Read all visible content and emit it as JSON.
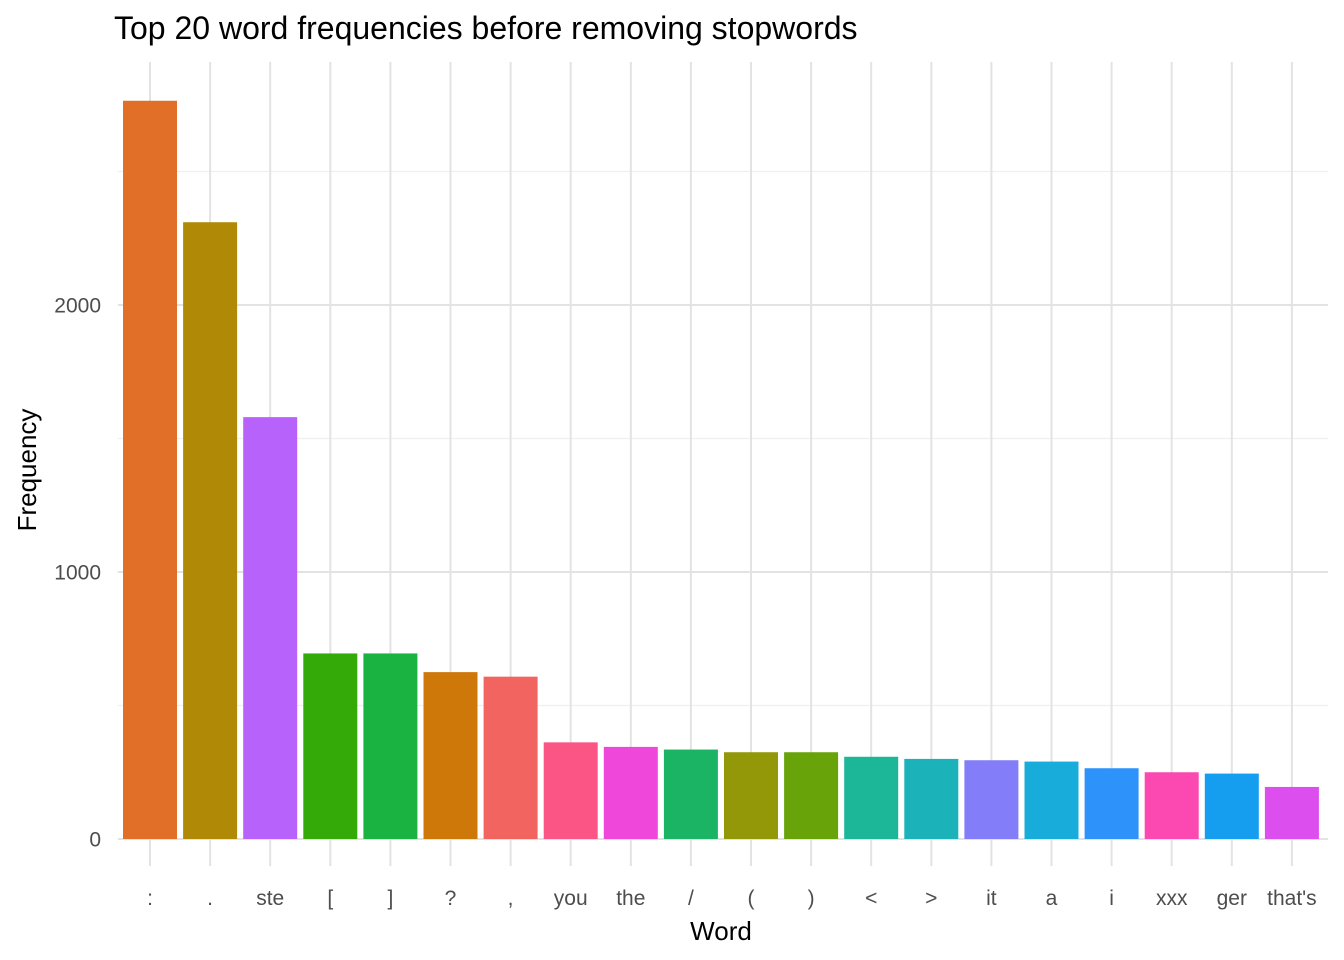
{
  "chart_data": {
    "type": "bar",
    "title": "Top 20 word frequencies before removing stopwords",
    "xlabel": "Word",
    "ylabel": "Frequency",
    "categories": [
      ":",
      ".",
      "ste",
      "[",
      "]",
      "?",
      ",",
      "you",
      "the",
      "/",
      "(",
      ")",
      "<",
      ">",
      "it",
      "a",
      "i",
      "xxx",
      "ger",
      "that's"
    ],
    "values": [
      2765,
      2310,
      1580,
      695,
      695,
      625,
      608,
      362,
      345,
      335,
      325,
      325,
      308,
      300,
      295,
      290,
      265,
      250,
      245,
      195
    ],
    "colors": [
      "#E16F27",
      "#B08A06",
      "#B762FB",
      "#34AA09",
      "#1AB240",
      "#CF780A",
      "#F2645F",
      "#FB5586",
      "#EE47DA",
      "#1BB464",
      "#929807",
      "#69A30A",
      "#1BB798",
      "#1BB2BA",
      "#837DFA",
      "#17ACD9",
      "#2E92FB",
      "#FC49B2",
      "#159DEF",
      "#DC4EED"
    ],
    "yticks": [
      0,
      1000,
      2000
    ],
    "ylim": [
      -100,
      2880
    ],
    "grid": true,
    "legend": "none"
  }
}
